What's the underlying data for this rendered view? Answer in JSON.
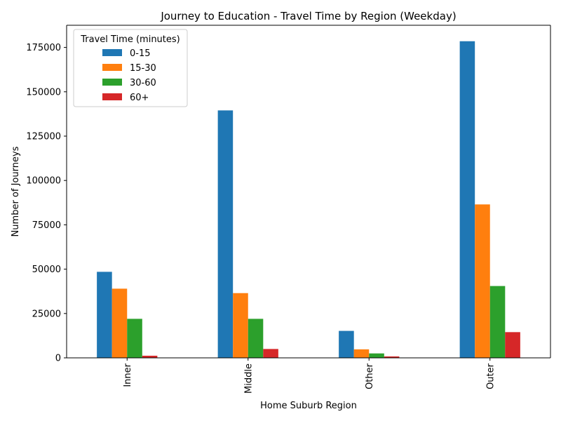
{
  "chart_data": {
    "type": "bar",
    "title": "Journey to Education - Travel Time by Region (Weekday)",
    "xlabel": "Home Suburb Region",
    "ylabel": "Number of Journeys",
    "categories": [
      "Inner",
      "Middle",
      "Other",
      "Outer"
    ],
    "ylim": [
      0,
      187500
    ],
    "yticks": [
      0,
      25000,
      50000,
      75000,
      100000,
      125000,
      150000,
      175000
    ],
    "ytick_labels": [
      "0",
      "25000",
      "50000",
      "75000",
      "100000",
      "125000",
      "150000",
      "175000"
    ],
    "grid": false,
    "legend": {
      "title": "Travel Time (minutes)",
      "position": "top-left"
    },
    "series": [
      {
        "name": "0-15",
        "color": "#1f77b4",
        "values": [
          48500,
          139500,
          15200,
          178500
        ]
      },
      {
        "name": "15-30",
        "color": "#ff7f0e",
        "values": [
          39000,
          36500,
          4800,
          86500
        ]
      },
      {
        "name": "30-60",
        "color": "#2ca02c",
        "values": [
          22000,
          22000,
          2500,
          40500
        ]
      },
      {
        "name": "60+",
        "color": "#d62728",
        "values": [
          1200,
          5000,
          800,
          14500
        ]
      }
    ]
  }
}
